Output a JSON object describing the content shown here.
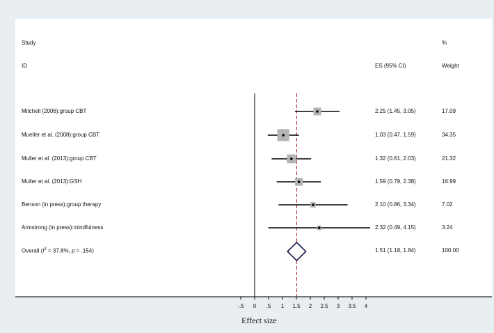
{
  "header": {
    "col_study": "Study",
    "col_id": "ID",
    "col_es": "ES (95% CI)",
    "col_pct": "%",
    "col_weight": "Weight"
  },
  "chart_data": {
    "type": "forest",
    "xlabel": "Effect size",
    "xticks": [
      "-.5",
      "0",
      ".5",
      "1",
      "1.5",
      "2",
      "2.5",
      "3",
      "3.5",
      "4"
    ],
    "xtick_values": [
      -0.5,
      0,
      0.5,
      1,
      1.5,
      2,
      2.5,
      3,
      3.5,
      4
    ],
    "xlim": [
      -0.5,
      4
    ],
    "null_line": 0,
    "overall_line": 1.51,
    "studies": [
      {
        "label": "Mitchell (2006):group CBT",
        "es": 2.25,
        "lo": 1.45,
        "hi": 3.05,
        "es_text": "2.25 (1.45, 3.05)",
        "weight": 17.09,
        "weight_text": "17.09"
      },
      {
        "label": "Mueller et al. (2008):group CBT",
        "es": 1.03,
        "lo": 0.47,
        "hi": 1.59,
        "es_text": "1.03 (0.47, 1.59)",
        "weight": 34.35,
        "weight_text": "34.35"
      },
      {
        "label": "Muller et al. (2013):group CBT",
        "es": 1.32,
        "lo": 0.61,
        "hi": 2.03,
        "es_text": "1.32 (0.61, 2.03)",
        "weight": 21.32,
        "weight_text": "21.32"
      },
      {
        "label": "Muller et al. (2013):GSH",
        "es": 1.59,
        "lo": 0.79,
        "hi": 2.38,
        "es_text": "1.59 (0.79, 2.38)",
        "weight": 16.99,
        "weight_text": "16.99"
      },
      {
        "label": "Benson (in press):group therapy",
        "es": 2.1,
        "lo": 0.86,
        "hi": 3.34,
        "es_text": "2.10 (0.86, 3.34)",
        "weight": 7.02,
        "weight_text": "7.02"
      },
      {
        "label": "Armstrong (in press):mindfulness",
        "es": 2.32,
        "lo": 0.49,
        "hi": 4.15,
        "es_text": "2.32 (0.49, 4.15)",
        "weight": 3.24,
        "weight_text": "3.24"
      }
    ],
    "overall": {
      "label_prefix": "Overall  (",
      "label_i2": "I",
      "label_sup": "2",
      "label_mid": " = 37.8%, ",
      "label_p": "p",
      "label_end": " = .154)",
      "es": 1.51,
      "lo": 1.18,
      "hi": 1.84,
      "es_text": "1.51 (1.18, 1.84)",
      "weight_text": "100.00"
    },
    "colors": {
      "box": "#b4b4b4",
      "ci_line": "#000000",
      "diamond": "#1a1a4e",
      "overall_line": "#a3262c",
      "background": "#ffffff"
    }
  }
}
